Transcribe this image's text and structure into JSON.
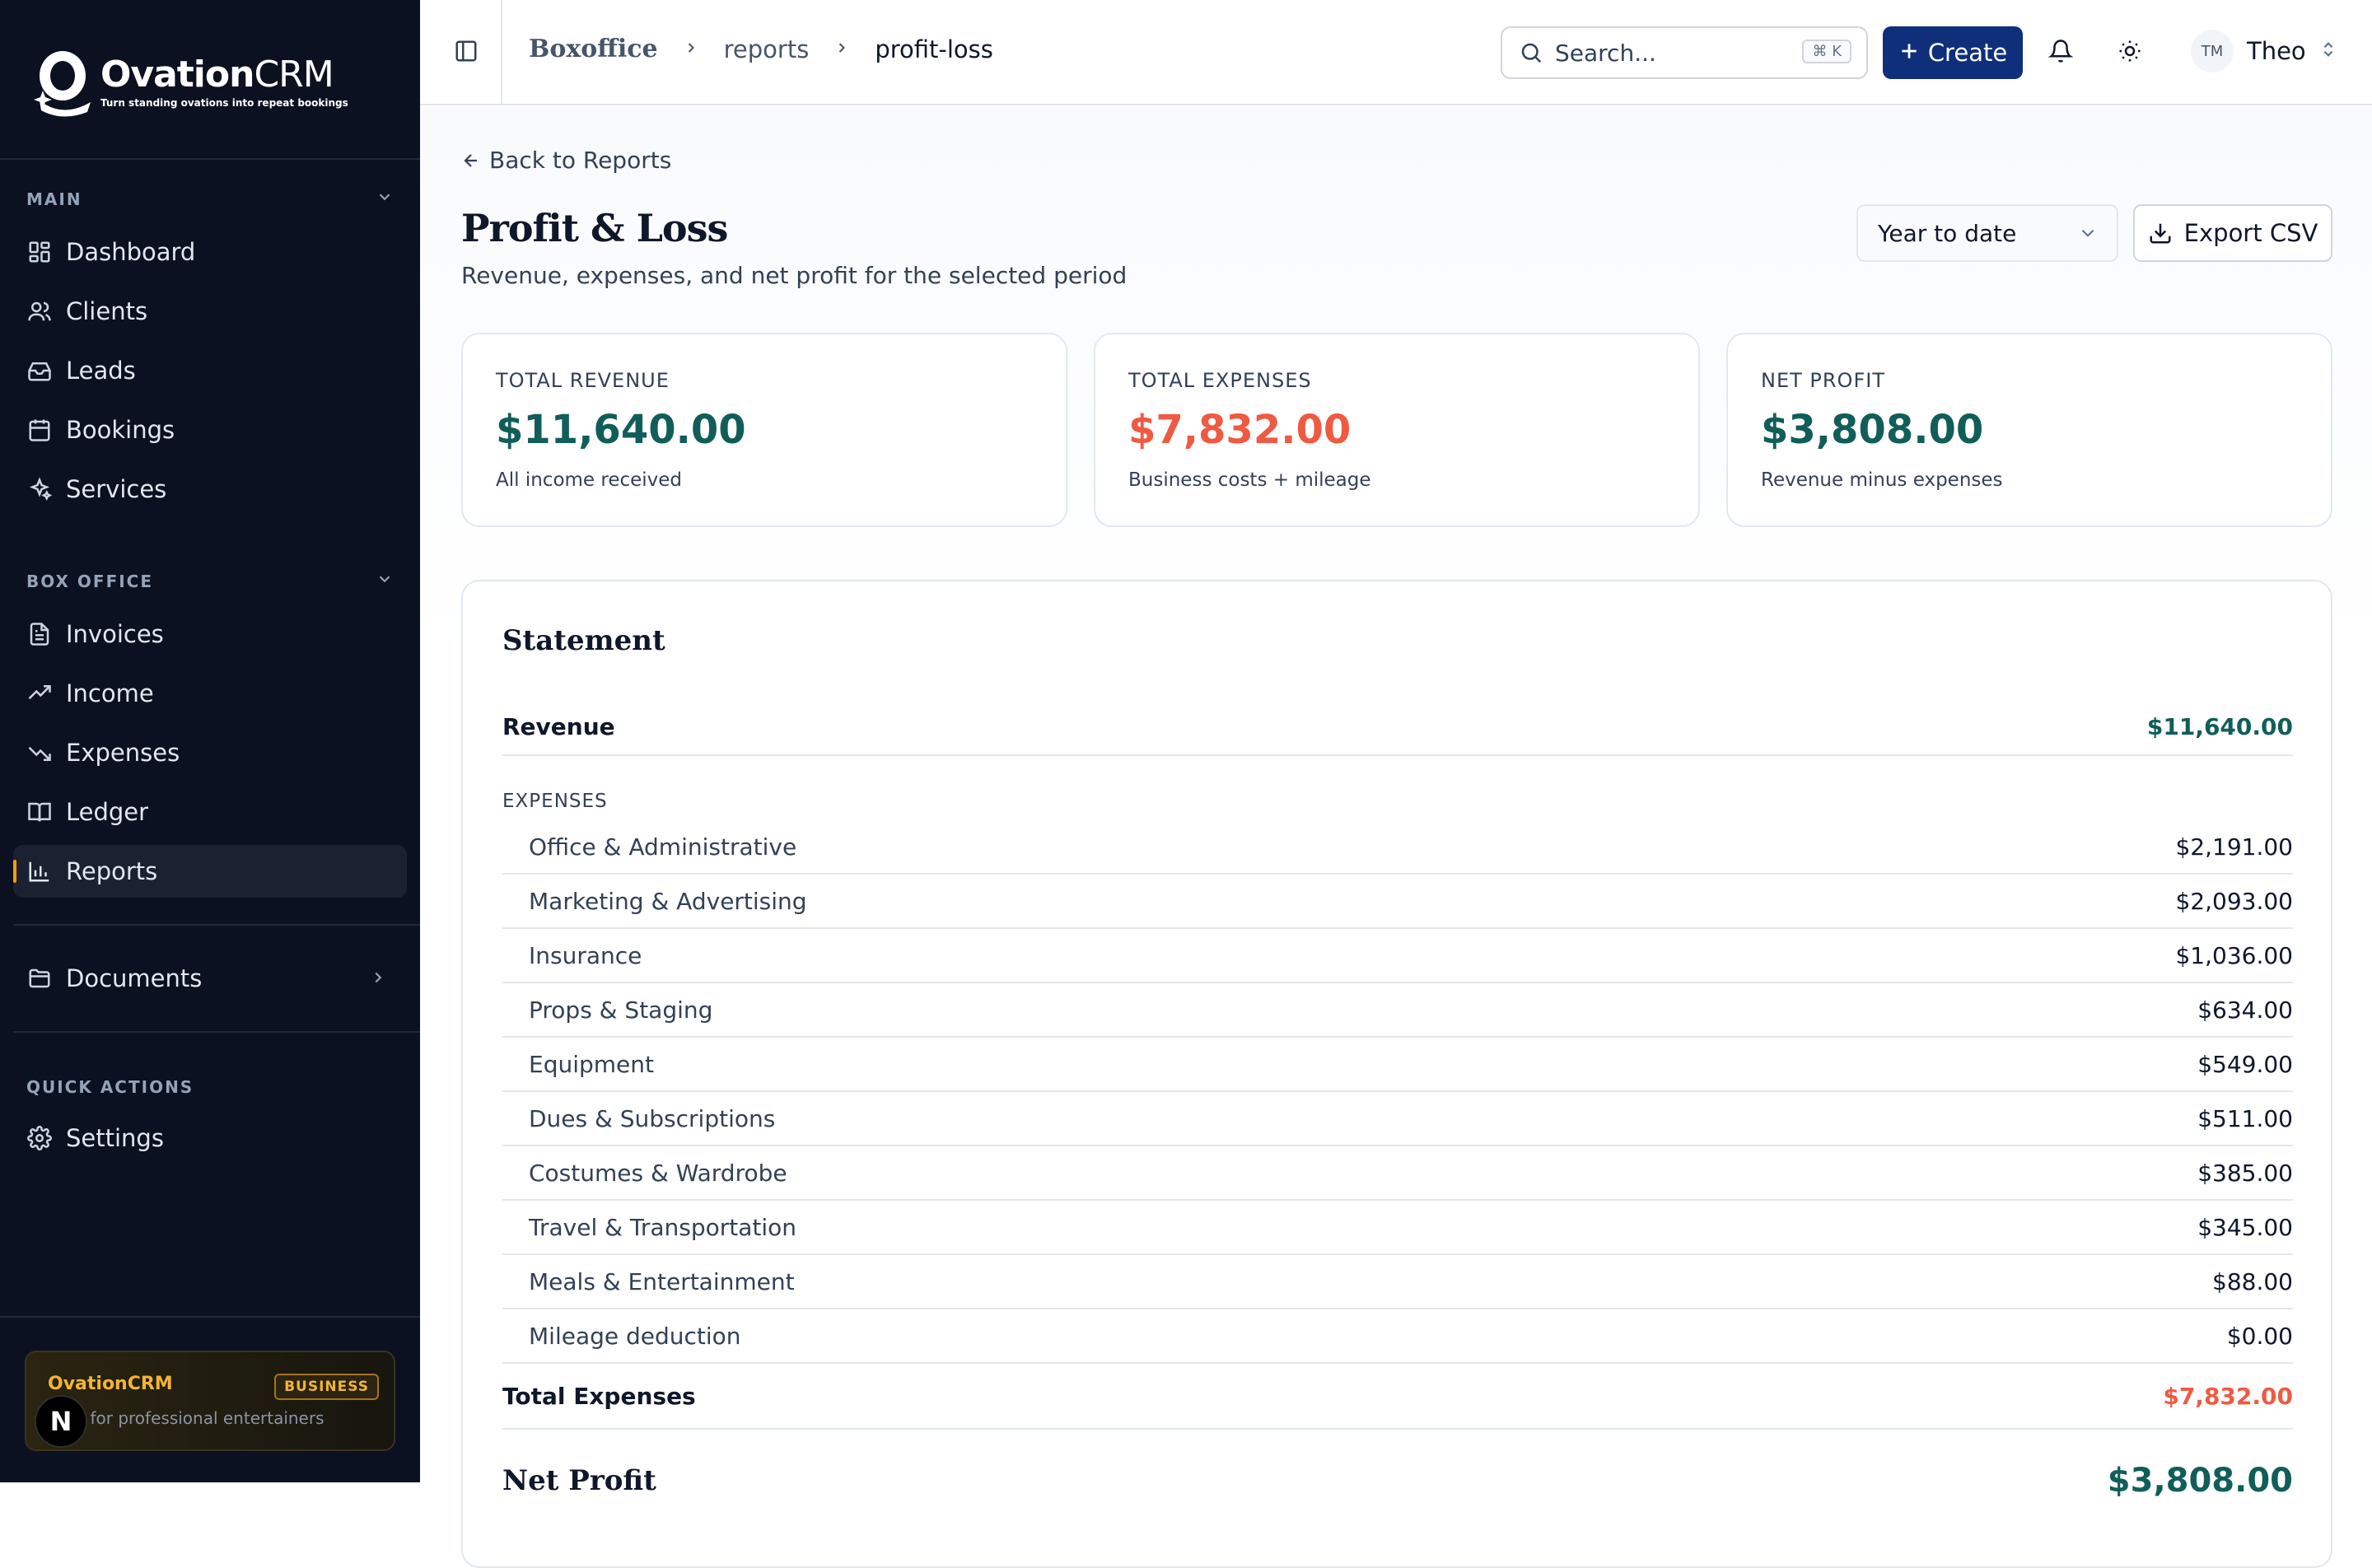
{
  "brand": {
    "name_bold": "Ovation",
    "name_light": "CRM",
    "tagline": "Turn standing ovations into repeat bookings"
  },
  "sidebar": {
    "main_label": "MAIN",
    "main_items": [
      {
        "label": "Dashboard",
        "icon": "dashboard-icon"
      },
      {
        "label": "Clients",
        "icon": "users-icon"
      },
      {
        "label": "Leads",
        "icon": "inbox-icon"
      },
      {
        "label": "Bookings",
        "icon": "calendar-icon"
      },
      {
        "label": "Services",
        "icon": "sparkles-icon"
      }
    ],
    "boxoffice_label": "BOX OFFICE",
    "boxoffice_items": [
      {
        "label": "Invoices",
        "icon": "document-icon"
      },
      {
        "label": "Income",
        "icon": "trending-up-icon"
      },
      {
        "label": "Expenses",
        "icon": "trending-down-icon"
      },
      {
        "label": "Ledger",
        "icon": "book-icon"
      },
      {
        "label": "Reports",
        "icon": "bar-chart-icon",
        "active": true
      }
    ],
    "documents_label": "Documents",
    "quick_actions_label": "QUICK ACTIONS",
    "settings_label": "Settings",
    "plan_card": {
      "title": "OvationCRM",
      "badge": "BUSINESS",
      "subtitle": "CRM for professional entertainers"
    },
    "n_badge": "N"
  },
  "topbar": {
    "breadcrumb": [
      "Boxoffice",
      "reports",
      "profit-loss"
    ],
    "search_placeholder": "Search...",
    "search_shortcut": "⌘ K",
    "create_label": "Create",
    "user_initials": "TM",
    "user_name": "Theo"
  },
  "page": {
    "back_label": "Back to Reports",
    "title": "Profit & Loss",
    "subtitle": "Revenue, expenses, and net profit for the selected period",
    "period_selected": "Year to date",
    "export_label": "Export CSV"
  },
  "kpis": [
    {
      "label": "TOTAL REVENUE",
      "value": "$11,640.00",
      "note": "All income received",
      "color": "#115e59"
    },
    {
      "label": "TOTAL EXPENSES",
      "value": "$7,832.00",
      "note": "Business costs + mileage",
      "color": "#ef5a43"
    },
    {
      "label": "NET PROFIT",
      "value": "$3,808.00",
      "note": "Revenue minus expenses",
      "color": "#115e59"
    }
  ],
  "statement": {
    "title": "Statement",
    "revenue_label": "Revenue",
    "revenue_value": "$11,640.00",
    "expenses_label": "EXPENSES",
    "expenses": [
      {
        "label": "Office & Administrative",
        "amount": "$2,191.00"
      },
      {
        "label": "Marketing & Advertising",
        "amount": "$2,093.00"
      },
      {
        "label": "Insurance",
        "amount": "$1,036.00"
      },
      {
        "label": "Props & Staging",
        "amount": "$634.00"
      },
      {
        "label": "Equipment",
        "amount": "$549.00"
      },
      {
        "label": "Dues & Subscriptions",
        "amount": "$511.00"
      },
      {
        "label": "Costumes & Wardrobe",
        "amount": "$385.00"
      },
      {
        "label": "Travel & Transportation",
        "amount": "$345.00"
      },
      {
        "label": "Meals & Entertainment",
        "amount": "$88.00"
      },
      {
        "label": "Mileage deduction",
        "amount": "$0.00"
      }
    ],
    "total_expenses_label": "Total Expenses",
    "total_expenses_value": "$7,832.00",
    "net_profit_label": "Net Profit",
    "net_profit_value": "$3,808.00"
  },
  "colors": {
    "sidebar_bg": "#0b1120",
    "accent_gold": "#f5b431",
    "primary_blue": "#0f2f7a",
    "positive_teal": "#115e59",
    "negative_red": "#ef5a43"
  }
}
